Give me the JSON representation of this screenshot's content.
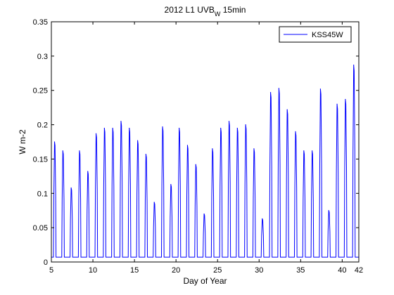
{
  "chart_data": {
    "type": "line",
    "title": "2012 L1 UVB",
    "title_subscript": "W",
    "title_suffix": " 15min",
    "xlabel": "Day of Year",
    "ylabel": "W m-2",
    "xlim": [
      5,
      42
    ],
    "ylim": [
      0,
      0.35
    ],
    "x_ticks": [
      5,
      10,
      15,
      20,
      25,
      30,
      35,
      40,
      42
    ],
    "y_ticks": [
      0,
      0.05,
      0.1,
      0.15,
      0.2,
      0.25,
      0.3,
      0.35
    ],
    "y_tick_labels": [
      "0",
      "0.05",
      "0.1",
      "0.15",
      "0.2",
      "0.25",
      "0.3",
      "0.35"
    ],
    "legend_position": "top-right",
    "grid": false,
    "baseline": 0.007,
    "series": [
      {
        "name": "KSS45W",
        "color": "#0000ff",
        "daily_peaks": [
          {
            "day": 5,
            "peak": 0.175
          },
          {
            "day": 6,
            "peak": 0.162
          },
          {
            "day": 7,
            "peak": 0.108
          },
          {
            "day": 8,
            "peak": 0.162
          },
          {
            "day": 9,
            "peak": 0.132
          },
          {
            "day": 10,
            "peak": 0.187
          },
          {
            "day": 11,
            "peak": 0.195
          },
          {
            "day": 12,
            "peak": 0.195
          },
          {
            "day": 13,
            "peak": 0.205
          },
          {
            "day": 14,
            "peak": 0.195
          },
          {
            "day": 15,
            "peak": 0.177
          },
          {
            "day": 16,
            "peak": 0.157
          },
          {
            "day": 17,
            "peak": 0.087
          },
          {
            "day": 18,
            "peak": 0.197
          },
          {
            "day": 19,
            "peak": 0.113
          },
          {
            "day": 20,
            "peak": 0.195
          },
          {
            "day": 21,
            "peak": 0.17
          },
          {
            "day": 22,
            "peak": 0.142
          },
          {
            "day": 23,
            "peak": 0.07
          },
          {
            "day": 24,
            "peak": 0.165
          },
          {
            "day": 25,
            "peak": 0.195
          },
          {
            "day": 26,
            "peak": 0.205
          },
          {
            "day": 27,
            "peak": 0.195
          },
          {
            "day": 28,
            "peak": 0.2
          },
          {
            "day": 29,
            "peak": 0.165
          },
          {
            "day": 30,
            "peak": 0.063
          },
          {
            "day": 31,
            "peak": 0.247
          },
          {
            "day": 32,
            "peak": 0.253
          },
          {
            "day": 33,
            "peak": 0.222
          },
          {
            "day": 34,
            "peak": 0.19
          },
          {
            "day": 35,
            "peak": 0.162
          },
          {
            "day": 36,
            "peak": 0.162
          },
          {
            "day": 37,
            "peak": 0.252
          },
          {
            "day": 38,
            "peak": 0.075
          },
          {
            "day": 39,
            "peak": 0.23
          },
          {
            "day": 40,
            "peak": 0.237
          },
          {
            "day": 41,
            "peak": 0.287
          }
        ]
      }
    ]
  }
}
